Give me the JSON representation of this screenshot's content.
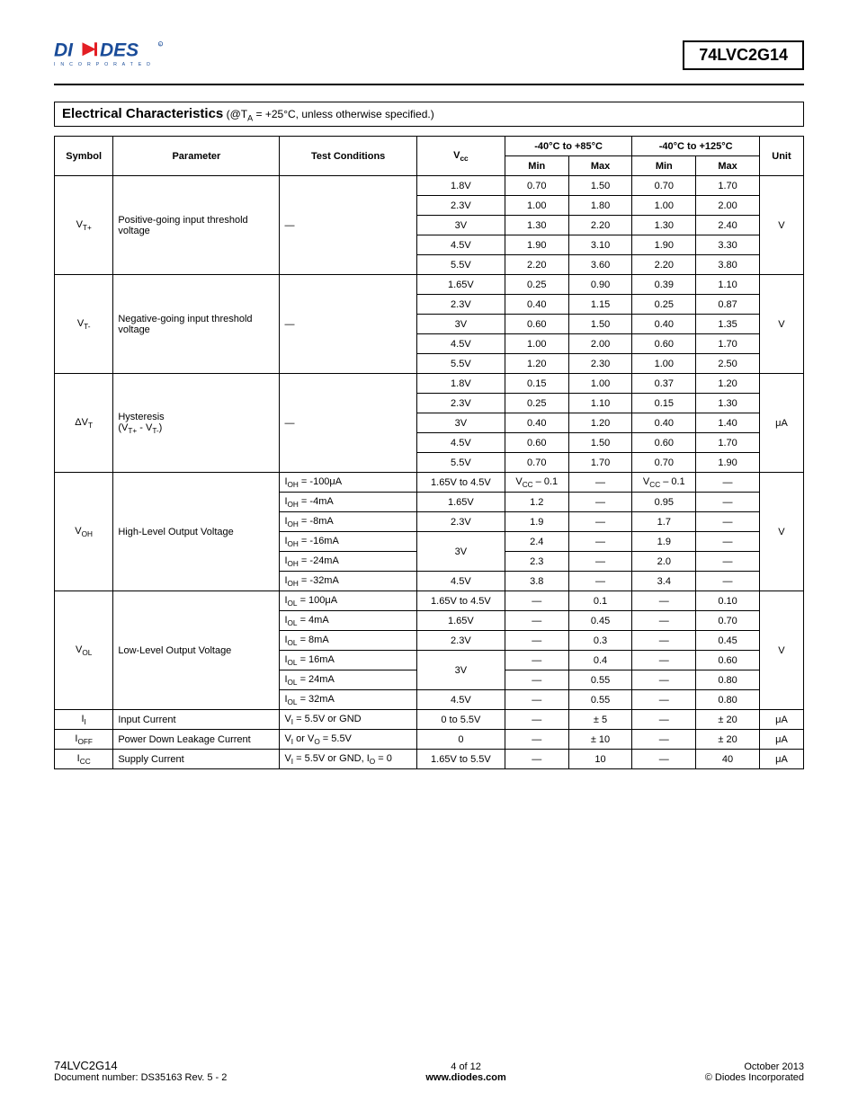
{
  "header": {
    "part_number": "74LVC2G14",
    "logo_colors": {
      "main": "#1a4c99",
      "accent": "#e31e24",
      "text": "#1a4c99"
    }
  },
  "section": {
    "title": "Electrical Characteristics",
    "condition": "(@T_A = +25°C, unless otherwise specified.)"
  },
  "table": {
    "headers": {
      "symbol": "Symbol",
      "parameter": "Parameter",
      "test_conditions": "Test Conditions",
      "vcc": "V_cc",
      "range1": "-40°C to +85°C",
      "range2": "-40°C to +125°C",
      "min": "Min",
      "max": "Max",
      "unit": "Unit"
    },
    "groups": [
      {
        "symbol": "V_T+",
        "parameter": "Positive-going input threshold voltage",
        "test_conditions": "—",
        "unit": "V",
        "rows": [
          {
            "vcc": "1.8V",
            "min1": "0.70",
            "max1": "1.50",
            "min2": "0.70",
            "max2": "1.70"
          },
          {
            "vcc": "2.3V",
            "min1": "1.00",
            "max1": "1.80",
            "min2": "1.00",
            "max2": "2.00"
          },
          {
            "vcc": "3V",
            "min1": "1.30",
            "max1": "2.20",
            "min2": "1.30",
            "max2": "2.40"
          },
          {
            "vcc": "4.5V",
            "min1": "1.90",
            "max1": "3.10",
            "min2": "1.90",
            "max2": "3.30"
          },
          {
            "vcc": "5.5V",
            "min1": "2.20",
            "max1": "3.60",
            "min2": "2.20",
            "max2": "3.80"
          }
        ]
      },
      {
        "symbol": "V_T-",
        "parameter": "Negative-going input threshold voltage",
        "test_conditions": "—",
        "unit": "V",
        "rows": [
          {
            "vcc": "1.65V",
            "min1": "0.25",
            "max1": "0.90",
            "min2": "0.39",
            "max2": "1.10"
          },
          {
            "vcc": "2.3V",
            "min1": "0.40",
            "max1": "1.15",
            "min2": "0.25",
            "max2": "0.87"
          },
          {
            "vcc": "3V",
            "min1": "0.60",
            "max1": "1.50",
            "min2": "0.40",
            "max2": "1.35"
          },
          {
            "vcc": "4.5V",
            "min1": "1.00",
            "max1": "2.00",
            "min2": "0.60",
            "max2": "1.70"
          },
          {
            "vcc": "5.5V",
            "min1": "1.20",
            "max1": "2.30",
            "min2": "1.00",
            "max2": "2.50"
          }
        ]
      },
      {
        "symbol": "ΔV_T",
        "parameter": "Hysteresis\n(V_T+ - V_T-)",
        "test_conditions": "—",
        "unit": "μA",
        "rows": [
          {
            "vcc": "1.8V",
            "min1": "0.15",
            "max1": "1.00",
            "min2": "0.37",
            "max2": "1.20"
          },
          {
            "vcc": "2.3V",
            "min1": "0.25",
            "max1": "1.10",
            "min2": "0.15",
            "max2": "1.30"
          },
          {
            "vcc": "3V",
            "min1": "0.40",
            "max1": "1.20",
            "min2": "0.40",
            "max2": "1.40"
          },
          {
            "vcc": "4.5V",
            "min1": "0.60",
            "max1": "1.50",
            "min2": "0.60",
            "max2": "1.70"
          },
          {
            "vcc": "5.5V",
            "min1": "0.70",
            "max1": "1.70",
            "min2": "0.70",
            "max2": "1.90"
          }
        ]
      },
      {
        "symbol": "V_OH",
        "parameter": "High-Level Output Voltage",
        "unit": "V",
        "rows": [
          {
            "tc": "I_OH = -100μA",
            "vcc": "1.65V to 4.5V",
            "min1": "V_CC – 0.1",
            "max1": "—",
            "min2": "V_CC – 0.1",
            "max2": "—"
          },
          {
            "tc": "I_OH = -4mA",
            "vcc": "1.65V",
            "min1": "1.2",
            "max1": "—",
            "min2": "0.95",
            "max2": "—"
          },
          {
            "tc": "I_OH = -8mA",
            "vcc": "2.3V",
            "min1": "1.9",
            "max1": "—",
            "min2": "1.7",
            "max2": "—"
          },
          {
            "tc": "I_OH = -16mA",
            "vcc": "3V",
            "vcc_rowspan": 2,
            "min1": "2.4",
            "max1": "—",
            "min2": "1.9",
            "max2": "—"
          },
          {
            "tc": "I_OH = -24mA",
            "min1": "2.3",
            "max1": "—",
            "min2": "2.0",
            "max2": "—"
          },
          {
            "tc": "I_OH = -32mA",
            "vcc": "4.5V",
            "min1": "3.8",
            "max1": "—",
            "min2": "3.4",
            "max2": "—"
          }
        ]
      },
      {
        "symbol": "V_OL",
        "parameter": "Low-Level Output Voltage",
        "unit": "V",
        "rows": [
          {
            "tc": "I_OL = 100μA",
            "vcc": "1.65V to 4.5V",
            "min1": "—",
            "max1": "0.1",
            "min2": "—",
            "max2": "0.10"
          },
          {
            "tc": "I_OL = 4mA",
            "vcc": "1.65V",
            "min1": "—",
            "max1": "0.45",
            "min2": "—",
            "max2": "0.70"
          },
          {
            "tc": "I_OL = 8mA",
            "vcc": "2.3V",
            "min1": "—",
            "max1": "0.3",
            "min2": "—",
            "max2": "0.45"
          },
          {
            "tc": "I_OL = 16mA",
            "vcc": "3V",
            "vcc_rowspan": 2,
            "min1": "—",
            "max1": "0.4",
            "min2": "—",
            "max2": "0.60"
          },
          {
            "tc": "I_OL = 24mA",
            "min1": "—",
            "max1": "0.55",
            "min2": "—",
            "max2": "0.80"
          },
          {
            "tc": "I_OL = 32mA",
            "vcc": "4.5V",
            "min1": "—",
            "max1": "0.55",
            "min2": "—",
            "max2": "0.80"
          }
        ]
      },
      {
        "symbol": "I_I",
        "parameter": "Input Current",
        "test_conditions": "V_I = 5.5V or GND",
        "unit": "μA",
        "rows": [
          {
            "vcc": "0 to 5.5V",
            "min1": "—",
            "max1": "± 5",
            "min2": "—",
            "max2": "± 20"
          }
        ]
      },
      {
        "symbol": "I_OFF",
        "parameter": "Power Down Leakage Current",
        "test_conditions": "V_I or V_O = 5.5V",
        "unit": "μA",
        "rows": [
          {
            "vcc": "0",
            "min1": "—",
            "max1": "± 10",
            "min2": "—",
            "max2": "± 20"
          }
        ]
      },
      {
        "symbol": "I_CC",
        "parameter": "Supply Current",
        "test_conditions": "V_I = 5.5V or GND, I_O = 0",
        "unit": "μA",
        "rows": [
          {
            "vcc": "1.65V to 5.5V",
            "min1": "—",
            "max1": "10",
            "min2": "—",
            "max2": "40"
          }
        ]
      }
    ]
  },
  "footer": {
    "left_line1": "74LVC2G14",
    "left_line2": "Document number: DS35163 Rev. 5 - 2",
    "center_line1": "4 of 12",
    "center_line2": "www.diodes.com",
    "right_line1": "October 2013",
    "right_line2": "© Diodes Incorporated"
  }
}
